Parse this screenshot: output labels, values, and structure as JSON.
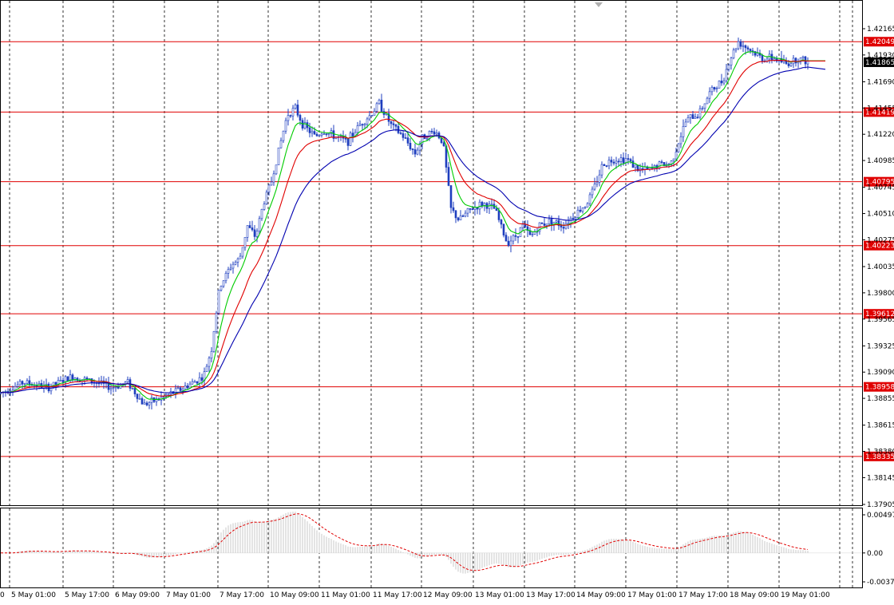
{
  "chart_data": {
    "type": "candlestick",
    "main": {
      "price_range": [
        1.37905,
        1.42165
      ],
      "y_ticks": [
        "1.42165",
        "1.41930",
        "1.41690",
        "1.41455",
        "1.41220",
        "1.40985",
        "1.40745",
        "1.40510",
        "1.40275",
        "1.40035",
        "1.39800",
        "1.39565",
        "1.39325",
        "1.39090",
        "1.38855",
        "1.38615",
        "1.38380",
        "1.38145",
        "1.37905"
      ],
      "levels": [
        {
          "value": 1.42049,
          "label": "1.42049"
        },
        {
          "value": 1.41419,
          "label": "1.41419"
        },
        {
          "value": 1.40795,
          "label": "1.40795"
        },
        {
          "value": 1.40223,
          "label": "1.40223"
        },
        {
          "value": 1.39612,
          "label": "1.39612"
        },
        {
          "value": 1.38958,
          "label": "1.38958"
        },
        {
          "value": 1.38335,
          "label": "1.38335"
        }
      ],
      "current": {
        "value": 1.41865,
        "label": "1.41865"
      },
      "price_path": [
        [
          0,
          1.389
        ],
        [
          30,
          1.39
        ],
        [
          60,
          1.3895
        ],
        [
          90,
          1.3905
        ],
        [
          120,
          1.39
        ],
        [
          140,
          1.3895
        ],
        [
          160,
          1.39
        ],
        [
          180,
          1.388
        ],
        [
          200,
          1.3885
        ],
        [
          230,
          1.3895
        ],
        [
          255,
          1.3905
        ],
        [
          265,
          1.393
        ],
        [
          275,
          1.3985
        ],
        [
          290,
          1.4005
        ],
        [
          300,
          1.401
        ],
        [
          310,
          1.404
        ],
        [
          320,
          1.403
        ],
        [
          330,
          1.406
        ],
        [
          340,
          1.408
        ],
        [
          350,
          1.411
        ],
        [
          360,
          1.414
        ],
        [
          370,
          1.4145
        ],
        [
          380,
          1.413
        ],
        [
          395,
          1.412
        ],
        [
          405,
          1.4125
        ],
        [
          420,
          1.412
        ],
        [
          435,
          1.4115
        ],
        [
          450,
          1.413
        ],
        [
          465,
          1.414
        ],
        [
          475,
          1.415
        ],
        [
          490,
          1.413
        ],
        [
          505,
          1.412
        ],
        [
          520,
          1.4105
        ],
        [
          530,
          1.412
        ],
        [
          545,
          1.4125
        ],
        [
          555,
          1.4115
        ],
        [
          565,
          1.4055
        ],
        [
          575,
          1.4045
        ],
        [
          590,
          1.4055
        ],
        [
          605,
          1.406
        ],
        [
          620,
          1.4055
        ],
        [
          635,
          1.4025
        ],
        [
          645,
          1.403
        ],
        [
          655,
          1.404
        ],
        [
          665,
          1.403
        ],
        [
          675,
          1.404
        ],
        [
          690,
          1.4045
        ],
        [
          705,
          1.404
        ],
        [
          720,
          1.405
        ],
        [
          735,
          1.406
        ],
        [
          745,
          1.4075
        ],
        [
          755,
          1.4095
        ],
        [
          770,
          1.41
        ],
        [
          785,
          1.41
        ],
        [
          800,
          1.409
        ],
        [
          815,
          1.409
        ],
        [
          825,
          1.4095
        ],
        [
          840,
          1.4095
        ],
        [
          850,
          1.4115
        ],
        [
          860,
          1.4135
        ],
        [
          875,
          1.414
        ],
        [
          890,
          1.416
        ],
        [
          905,
          1.417
        ],
        [
          915,
          1.419
        ],
        [
          925,
          1.4205
        ],
        [
          935,
          1.42
        ],
        [
          945,
          1.4195
        ],
        [
          955,
          1.419
        ],
        [
          970,
          1.419
        ],
        [
          985,
          1.4185
        ],
        [
          1000,
          1.419
        ],
        [
          1012,
          1.4187
        ]
      ]
    },
    "indicator": {
      "y_ticks": [
        "0.004979",
        "0.00",
        "-0.00377"
      ],
      "range": [
        -0.00377,
        0.004979
      ]
    },
    "x_labels": [
      {
        "x": 0,
        "label": "0"
      },
      {
        "x": 40,
        "label": "5 May 01:00"
      },
      {
        "x": 107,
        "label": "5 May 17:00"
      },
      {
        "x": 170,
        "label": "6 May 09:00"
      },
      {
        "x": 234,
        "label": "7 May 01:00"
      },
      {
        "x": 301,
        "label": "7 May 17:00"
      },
      {
        "x": 364,
        "label": "10 May 09:00"
      },
      {
        "x": 428,
        "label": "11 May 01:00"
      },
      {
        "x": 493,
        "label": "11 May 17:00"
      },
      {
        "x": 556,
        "label": "12 May 09:00"
      },
      {
        "x": 621,
        "label": "13 May 01:00"
      },
      {
        "x": 685,
        "label": "13 May 17:00"
      },
      {
        "x": 748,
        "label": "14 May 09:00"
      },
      {
        "x": 812,
        "label": "17 May 01:00"
      },
      {
        "x": 876,
        "label": "17 May 17:00"
      },
      {
        "x": 940,
        "label": "18 May 09:00"
      },
      {
        "x": 1004,
        "label": "19 May 01:00"
      }
    ],
    "colors": {
      "candle": "#1f3fbf",
      "ma_fast": "#00cc00",
      "ma_mid": "#e00000",
      "ma_slow": "#0000b0",
      "level": "#e00000",
      "histogram": "#c8c8c8",
      "signal": "#e00000"
    }
  }
}
